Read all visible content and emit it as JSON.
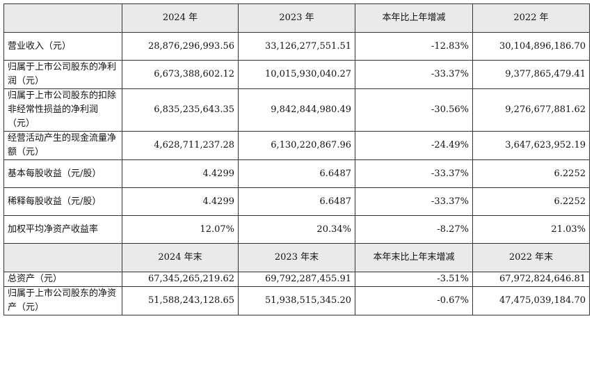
{
  "header1": {
    "col0": "",
    "col1": "2024 年",
    "col2": "2023 年",
    "col3": "本年比上年增减",
    "col4": "2022 年"
  },
  "rows1": [
    {
      "label": "营业收入（元）",
      "v2024": "28,876,296,993.56",
      "v2023": "33,126,277,551.51",
      "change": "-12.83%",
      "v2022": "30,104,896,186.70"
    },
    {
      "label": "归属于上市公司股东的净利润（元）",
      "v2024": "6,673,388,602.12",
      "v2023": "10,015,930,040.27",
      "change": "-33.37%",
      "v2022": "9,377,865,479.41"
    },
    {
      "label": "归属于上市公司股东的扣除非经常性损益的净利润（元）",
      "v2024": "6,835,235,643.35",
      "v2023": "9,842,844,980.49",
      "change": "-30.56%",
      "v2022": "9,276,677,881.62"
    },
    {
      "label": "经营活动产生的现金流量净额（元）",
      "v2024": "4,628,711,237.28",
      "v2023": "6,130,220,867.96",
      "change": "-24.49%",
      "v2022": "3,647,623,952.19"
    },
    {
      "label": "基本每股收益（元/股）",
      "v2024": "4.4299",
      "v2023": "6.6487",
      "change": "-33.37%",
      "v2022": "6.2252"
    },
    {
      "label": "稀释每股收益（元/股）",
      "v2024": "4.4299",
      "v2023": "6.6487",
      "change": "-33.37%",
      "v2022": "6.2252"
    },
    {
      "label": "加权平均净资产收益率",
      "v2024": "12.07%",
      "v2023": "20.34%",
      "change": "-8.27%",
      "v2022": "21.03%"
    }
  ],
  "header2": {
    "col0": "",
    "col1": "2024 年末",
    "col2": "2023 年末",
    "col3": "本年末比上年末增减",
    "col4": "2022 年末"
  },
  "rows2": [
    {
      "label": "总资产（元）",
      "v2024": "67,345,265,219.62",
      "v2023": "69,792,287,455.91",
      "change": "-3.51%",
      "v2022": "67,972,824,646.81"
    },
    {
      "label": "归属于上市公司股东的净资产（元）",
      "v2024": "51,588,243,128.65",
      "v2023": "51,938,515,345.20",
      "change": "-0.67%",
      "v2022": "47,475,039,184.70"
    }
  ]
}
